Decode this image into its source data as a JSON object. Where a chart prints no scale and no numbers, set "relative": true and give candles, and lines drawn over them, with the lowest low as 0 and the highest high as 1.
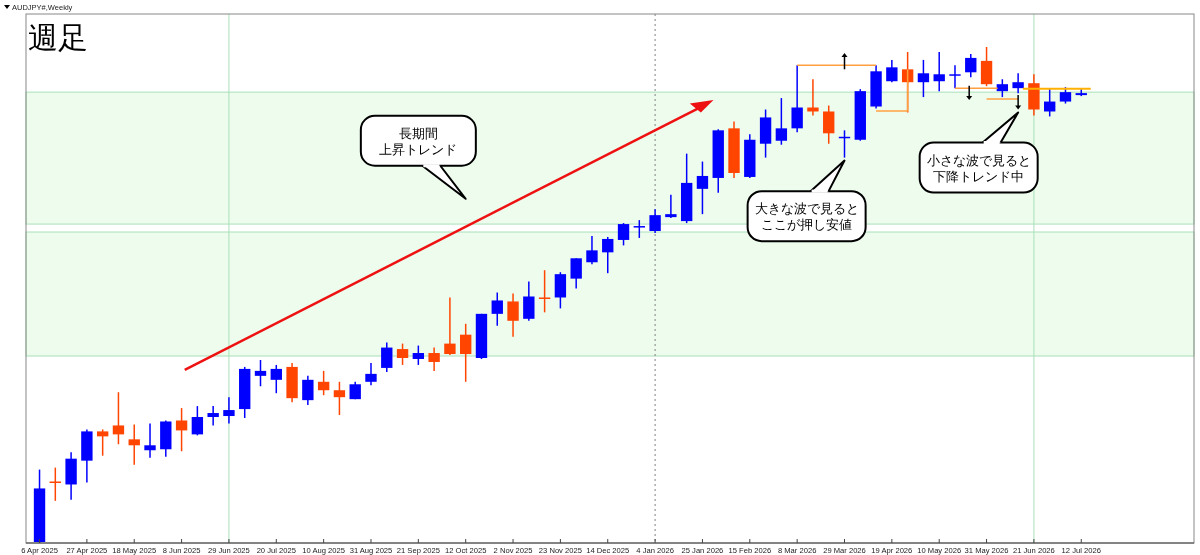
{
  "chart_data": {
    "type": "candlestick",
    "title": "週足",
    "subtitle": "AUDJPY#,Weekly",
    "relative": true,
    "tick_labels": "x",
    "x": [
      "2025-04-06",
      "2025-04-13",
      "2025-04-20",
      "2025-04-27",
      "2025-05-04",
      "2025-05-11",
      "2025-05-18",
      "2025-05-25",
      "2025-06-01",
      "2025-06-08",
      "2025-06-15",
      "2025-06-22",
      "2025-06-29",
      "2025-07-06",
      "2025-07-13",
      "2025-07-20",
      "2025-07-27",
      "2025-08-03",
      "2025-08-10",
      "2025-08-17",
      "2025-08-24",
      "2025-08-31",
      "2025-09-07",
      "2025-09-14",
      "2025-09-21",
      "2025-09-28",
      "2025-10-05",
      "2025-10-12",
      "2025-10-19",
      "2025-10-26",
      "2025-11-02",
      "2025-11-09",
      "2025-11-16",
      "2025-11-23",
      "2025-11-30",
      "2025-12-07",
      "2025-12-14",
      "2025-12-21",
      "2025-12-28",
      "2026-01-04",
      "2026-01-11",
      "2026-01-18",
      "2026-01-25",
      "2026-02-01",
      "2026-02-08",
      "2026-02-15",
      "2026-02-22",
      "2026-03-01",
      "2026-03-08",
      "2026-03-15",
      "2026-03-22",
      "2026-03-29",
      "2026-04-05",
      "2026-04-12",
      "2026-04-19",
      "2026-04-26",
      "2026-05-03",
      "2026-05-10",
      "2026-05-17",
      "2026-05-24",
      "2026-05-31",
      "2026-06-07",
      "2026-06-14",
      "2026-06-21",
      "2026-06-28",
      "2026-07-05",
      "2026-07-12"
    ],
    "ohlc": [
      [
        0.002,
        0.148,
        0,
        0.11
      ],
      [
        0.124,
        0.152,
        0.085,
        0.122
      ],
      [
        0.118,
        0.183,
        0.087,
        0.17
      ],
      [
        0.166,
        0.229,
        0.122,
        0.225
      ],
      [
        0.225,
        0.229,
        0.176,
        0.215
      ],
      [
        0.237,
        0.304,
        0.199,
        0.219
      ],
      [
        0.209,
        0.239,
        0.158,
        0.197
      ],
      [
        0.187,
        0.241,
        0.172,
        0.197
      ],
      [
        0.189,
        0.247,
        0.174,
        0.245
      ],
      [
        0.247,
        0.272,
        0.185,
        0.227
      ],
      [
        0.219,
        0.276,
        0.217,
        0.254
      ],
      [
        0.254,
        0.276,
        0.237,
        0.262
      ],
      [
        0.256,
        0.294,
        0.241,
        0.268
      ],
      [
        0.27,
        0.355,
        0.252,
        0.351
      ],
      [
        0.337,
        0.369,
        0.316,
        0.347
      ],
      [
        0.329,
        0.359,
        0.302,
        0.351
      ],
      [
        0.355,
        0.363,
        0.284,
        0.292
      ],
      [
        0.288,
        0.337,
        0.278,
        0.329
      ],
      [
        0.325,
        0.347,
        0.298,
        0.308
      ],
      [
        0.308,
        0.325,
        0.258,
        0.294
      ],
      [
        0.29,
        0.325,
        0.29,
        0.32
      ],
      [
        0.325,
        0.363,
        0.318,
        0.341
      ],
      [
        0.353,
        0.404,
        0.345,
        0.394
      ],
      [
        0.391,
        0.402,
        0.359,
        0.373
      ],
      [
        0.371,
        0.398,
        0.359,
        0.383
      ],
      [
        0.383,
        0.394,
        0.347,
        0.365
      ],
      [
        0.402,
        0.495,
        0.379,
        0.381
      ],
      [
        0.42,
        0.442,
        0.325,
        0.381
      ],
      [
        0.373,
        0.462,
        0.371,
        0.462
      ],
      [
        0.462,
        0.505,
        0.438,
        0.489
      ],
      [
        0.487,
        0.503,
        0.416,
        0.448
      ],
      [
        0.452,
        0.527,
        0.448,
        0.497
      ],
      [
        0.495,
        0.55,
        0.465,
        0.493
      ],
      [
        0.495,
        0.546,
        0.473,
        0.542
      ],
      [
        0.533,
        0.574,
        0.513,
        0.574
      ],
      [
        0.566,
        0.619,
        0.562,
        0.59
      ],
      [
        0.586,
        0.617,
        0.544,
        0.613
      ],
      [
        0.611,
        0.645,
        0.6,
        0.643
      ],
      [
        0.637,
        0.651,
        0.615,
        0.639
      ],
      [
        0.629,
        0.673,
        0.625,
        0.661
      ],
      [
        0.657,
        0.702,
        0.655,
        0.663
      ],
      [
        0.649,
        0.785,
        0.645,
        0.726
      ],
      [
        0.714,
        0.769,
        0.663,
        0.74
      ],
      [
        0.736,
        0.834,
        0.706,
        0.832
      ],
      [
        0.836,
        0.85,
        0.736,
        0.746
      ],
      [
        0.738,
        0.824,
        0.736,
        0.813
      ],
      [
        0.805,
        0.874,
        0.777,
        0.858
      ],
      [
        0.811,
        0.897,
        0.803,
        0.836
      ],
      [
        0.836,
        0.963,
        0.828,
        0.878
      ],
      [
        0.878,
        0.935,
        0.862,
        0.87
      ],
      [
        0.87,
        0.882,
        0.805,
        0.826
      ],
      [
        0.817,
        0.832,
        0.777,
        0.819
      ],
      [
        0.813,
        0.915,
        0.811,
        0.911
      ],
      [
        0.88,
        0.963,
        0.876,
        0.951
      ],
      [
        0.931,
        0.974,
        0.929,
        0.959
      ],
      [
        0.955,
        0.99,
        0.868,
        0.929
      ],
      [
        0.929,
        0.974,
        0.899,
        0.947
      ],
      [
        0.931,
        0.99,
        0.911,
        0.945
      ],
      [
        0.943,
        0.963,
        0.917,
        0.945
      ],
      [
        0.949,
        0.986,
        0.939,
        0.978
      ],
      [
        0.972,
        1,
        0.921,
        0.925
      ],
      [
        0.911,
        0.935,
        0.899,
        0.925
      ],
      [
        0.917,
        0.947,
        0.907,
        0.929
      ],
      [
        0.927,
        0.945,
        0.862,
        0.874
      ],
      [
        0.87,
        0.915,
        0.86,
        0.89
      ],
      [
        0.89,
        0.919,
        0.886,
        0.909
      ],
      [
        0.903,
        0.915,
        0.901,
        0.907
      ]
    ],
    "colors": [
      "#0000ff",
      "#ff4500",
      "#0000ff",
      "#0000ff",
      "#ff4500",
      "#ff4500",
      "#ff4500",
      "#0000ff",
      "#0000ff",
      "#ff4500",
      "#0000ff",
      "#0000ff",
      "#0000ff",
      "#0000ff",
      "#0000ff",
      "#0000ff",
      "#ff4500",
      "#0000ff",
      "#ff4500",
      "#ff4500",
      "#0000ff",
      "#0000ff",
      "#0000ff",
      "#ff4500",
      "#0000ff",
      "#ff4500",
      "#ff4500",
      "#ff4500",
      "#0000ff",
      "#0000ff",
      "#ff4500",
      "#0000ff",
      "#ff4500",
      "#0000ff",
      "#0000ff",
      "#0000ff",
      "#0000ff",
      "#0000ff",
      "#0000ff",
      "#0000ff",
      "#0000ff",
      "#0000ff",
      "#0000ff",
      "#0000ff",
      "#ff4500",
      "#0000ff",
      "#0000ff",
      "#0000ff",
      "#0000ff",
      "#ff4500",
      "#ff4500",
      "#0000ff",
      "#0000ff",
      "#0000ff",
      "#0000ff",
      "#ff4500",
      "#0000ff",
      "#0000ff",
      "#0000ff",
      "#0000ff",
      "#ff4500",
      "#0000ff",
      "#0000ff",
      "#ff4500",
      "#0000ff",
      "#0000ff",
      "#0000ff"
    ],
    "xlim": [
      "2025-03-31",
      "2026-08-31"
    ],
    "xticks": [
      {
        "value": "2025-04-06",
        "label": "6 Apr 2025"
      },
      {
        "value": "2025-04-27",
        "label": "27 Apr 2025"
      },
      {
        "value": "2025-05-18",
        "label": "18 May 2025"
      },
      {
        "value": "2025-06-08",
        "label": "8 Jun 2025"
      },
      {
        "value": "2025-06-29",
        "label": "29 Jun 2025"
      },
      {
        "value": "2025-07-20",
        "label": "20 Jul 2025"
      },
      {
        "value": "2025-08-10",
        "label": "10 Aug 2025"
      },
      {
        "value": "2025-08-31",
        "label": "31 Aug 2025"
      },
      {
        "value": "2025-09-21",
        "label": "21 Sep 2025"
      },
      {
        "value": "2025-10-12",
        "label": "12 Oct 2025"
      },
      {
        "value": "2025-11-02",
        "label": "2 Nov 2025"
      },
      {
        "value": "2025-11-23",
        "label": "23 Nov 2025"
      },
      {
        "value": "2025-12-14",
        "label": "14 Dec 2025"
      },
      {
        "value": "2026-01-04",
        "label": "4 Jan 2026"
      },
      {
        "value": "2026-01-25",
        "label": "25 Jan 2026"
      },
      {
        "value": "2026-02-15",
        "label": "15 Feb 2026"
      },
      {
        "value": "2026-03-08",
        "label": "8 Mar 2026"
      },
      {
        "value": "2026-03-29",
        "label": "29 Mar 2026"
      },
      {
        "value": "2026-04-19",
        "label": "19 Apr 2026"
      },
      {
        "value": "2026-05-10",
        "label": "10 May 2026"
      },
      {
        "value": "2026-05-31",
        "label": "31 May 2026"
      },
      {
        "value": "2026-06-21",
        "label": "21 Jun 2026"
      },
      {
        "value": "2026-07-12",
        "label": "12 Jul 2026"
      }
    ],
    "bands": [
      {
        "axis": "y",
        "from": 0.377,
        "to": 0.627,
        "color": "#eefcee"
      },
      {
        "axis": "y",
        "from": 0.643,
        "to": 0.909,
        "color": "#eefcee"
      }
    ],
    "ref_lines": [
      {
        "axis": "x",
        "value": "2026-01-04",
        "color": "#808080",
        "line_style": "dotted"
      },
      {
        "axis": "x",
        "value": "2025-06-29",
        "color": "#a8e0b8",
        "line_style": "solid"
      },
      {
        "axis": "x",
        "value": "2026-06-21",
        "color": "#a8e0b8",
        "line_style": "solid"
      }
    ],
    "annotations": [
      "長期間上昇トレンド",
      "大きな波で見るとここが押し安値",
      "小さな波で見ると下降トレンド中"
    ]
  }
}
